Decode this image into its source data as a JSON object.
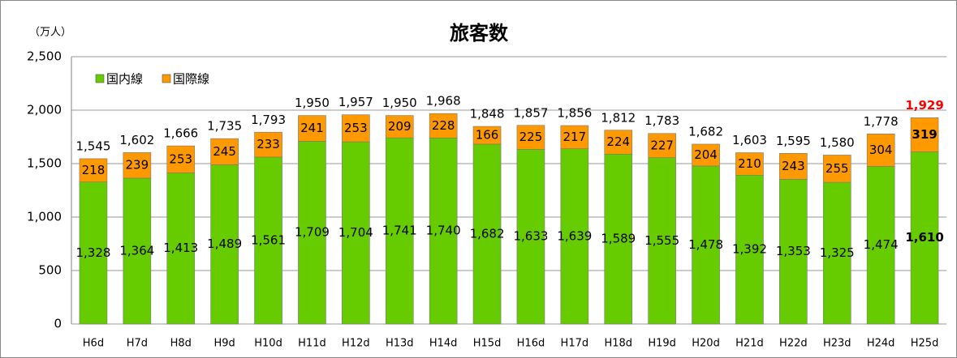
{
  "chart_data": {
    "type": "stacked-bar",
    "title": "旅客数",
    "y_axis_label": "（万人）",
    "categories": [
      "H6d",
      "H7d",
      "H8d",
      "H9d",
      "H10d",
      "H11d",
      "H12d",
      "H13d",
      "H14d",
      "H15d",
      "H16d",
      "H17d",
      "H18d",
      "H19d",
      "H20d",
      "H21d",
      "H22d",
      "H23d",
      "H24d",
      "H25d"
    ],
    "series": [
      {
        "name": "国内線",
        "color": "#66cc00",
        "values": [
          1328,
          1364,
          1413,
          1489,
          1561,
          1709,
          1704,
          1741,
          1740,
          1682,
          1633,
          1639,
          1589,
          1555,
          1478,
          1392,
          1353,
          1325,
          1474,
          1610
        ],
        "value_labels": [
          "1,328",
          "1,364",
          "1,413",
          "1,489",
          "1,561",
          "1,709",
          "1,704",
          "1,741",
          "1,740",
          "1,682",
          "1,633",
          "1,639",
          "1,589",
          "1,555",
          "1,478",
          "1,392",
          "1,353",
          "1,325",
          "1,474",
          "1,610"
        ]
      },
      {
        "name": "国際線",
        "color": "#ff9900",
        "values": [
          218,
          239,
          253,
          245,
          233,
          241,
          253,
          209,
          228,
          166,
          225,
          217,
          224,
          227,
          204,
          210,
          243,
          255,
          304,
          319
        ]
      }
    ],
    "totals": [
      1545,
      1602,
      1666,
      1735,
      1793,
      1950,
      1957,
      1950,
      1968,
      1848,
      1857,
      1856,
      1812,
      1783,
      1682,
      1603,
      1595,
      1580,
      1778,
      1929
    ],
    "total_labels": [
      "1,545",
      "1,602",
      "1,666",
      "1,735",
      "1,793",
      "1,950",
      "1,957",
      "1,950",
      "1,968",
      "1,848",
      "1,857",
      "1,856",
      "1,812",
      "1,783",
      "1,682",
      "1,603",
      "1,595",
      "1,580",
      "1,778",
      "1,929"
    ],
    "ylim": [
      0,
      2500
    ],
    "yticks": [
      0,
      500,
      {
        "value": 1000,
        "label": "1,000"
      },
      {
        "value": 1500,
        "label": "1,500"
      },
      {
        "value": 2000,
        "label": "2,000"
      },
      {
        "value": 2500,
        "label": "2,500"
      }
    ],
    "grid": true,
    "legend": "top-left"
  }
}
